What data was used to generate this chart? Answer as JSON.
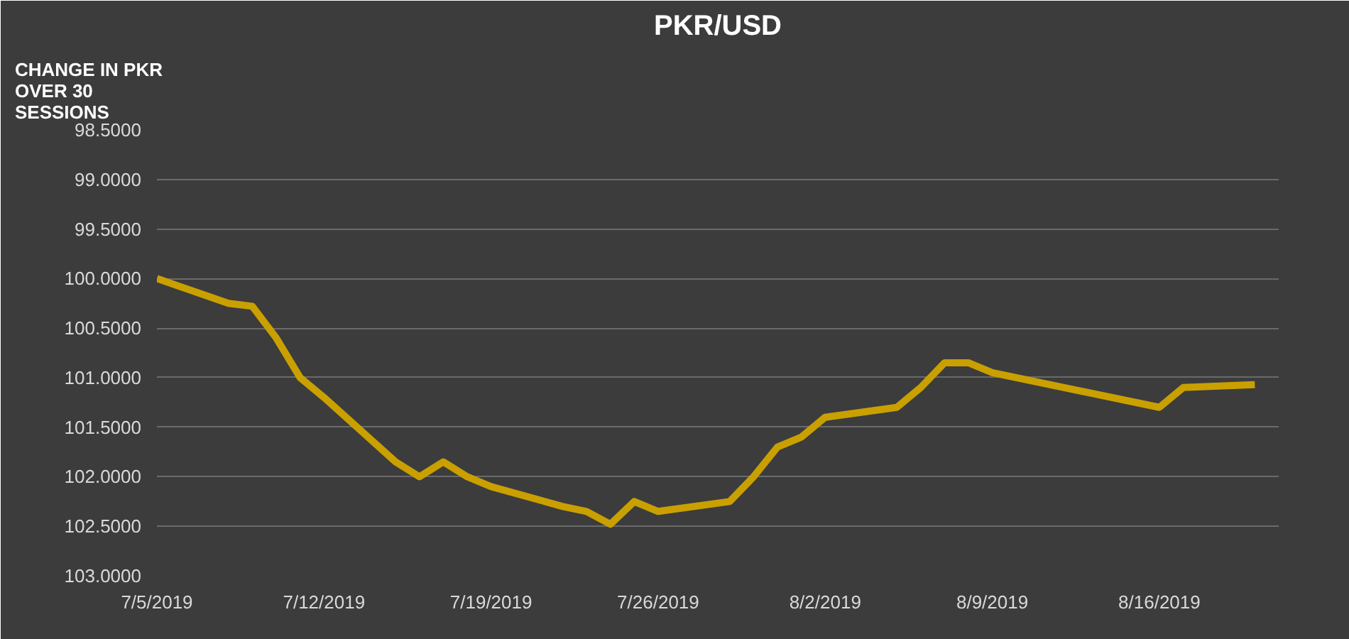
{
  "chart_data": {
    "type": "line",
    "title": "PKR/USD",
    "ylabel": "CHANGE IN PKR OVER 30 SESSIONS",
    "x": [
      "2019-07-05",
      "2019-07-08",
      "2019-07-09",
      "2019-07-10",
      "2019-07-11",
      "2019-07-12",
      "2019-07-15",
      "2019-07-16",
      "2019-07-17",
      "2019-07-18",
      "2019-07-19",
      "2019-07-22",
      "2019-07-23",
      "2019-07-24",
      "2019-07-25",
      "2019-07-26",
      "2019-07-29",
      "2019-07-30",
      "2019-07-31",
      "2019-08-01",
      "2019-08-02",
      "2019-08-05",
      "2019-08-06",
      "2019-08-07",
      "2019-08-08",
      "2019-08-09",
      "2019-08-16",
      "2019-08-17",
      "2019-08-20"
    ],
    "series": [
      {
        "color": "#c9a000",
        "values": [
          100.0,
          100.25,
          100.28,
          100.6,
          101.0,
          101.2,
          101.85,
          102.0,
          101.85,
          102.0,
          102.1,
          102.3,
          102.35,
          102.48,
          102.25,
          102.35,
          102.25,
          102.0,
          101.7,
          101.6,
          101.4,
          101.3,
          101.1,
          100.85,
          100.85,
          100.95,
          101.3,
          101.1,
          101.07
        ]
      }
    ],
    "xlim": [
      "2019-07-05",
      "2019-08-21"
    ],
    "xticks": [
      {
        "value": "2019-07-05",
        "label": "7/5/2019"
      },
      {
        "value": "2019-07-12",
        "label": "7/12/2019"
      },
      {
        "value": "2019-07-19",
        "label": "7/19/2019"
      },
      {
        "value": "2019-07-26",
        "label": "7/26/2019"
      },
      {
        "value": "2019-08-02",
        "label": "8/2/2019"
      },
      {
        "value": "2019-08-09",
        "label": "8/9/2019"
      },
      {
        "value": "2019-08-16",
        "label": "8/16/2019"
      }
    ],
    "ylim": [
      103.0,
      98.5
    ],
    "yticks": [
      {
        "value": 98.5,
        "label": "98.5000"
      },
      {
        "value": 99.0,
        "label": "99.0000"
      },
      {
        "value": 99.5,
        "label": "99.5000"
      },
      {
        "value": 100.0,
        "label": "100.0000"
      },
      {
        "value": 100.5,
        "label": "100.5000"
      },
      {
        "value": 101.0,
        "label": "101.0000"
      },
      {
        "value": 101.5,
        "label": "101.5000"
      },
      {
        "value": 102.0,
        "label": "102.0000"
      },
      {
        "value": 102.5,
        "label": "102.5000"
      },
      {
        "value": 103.0,
        "label": "103.0000"
      }
    ],
    "grid": "y",
    "marker": "none",
    "line_style": "solid"
  }
}
